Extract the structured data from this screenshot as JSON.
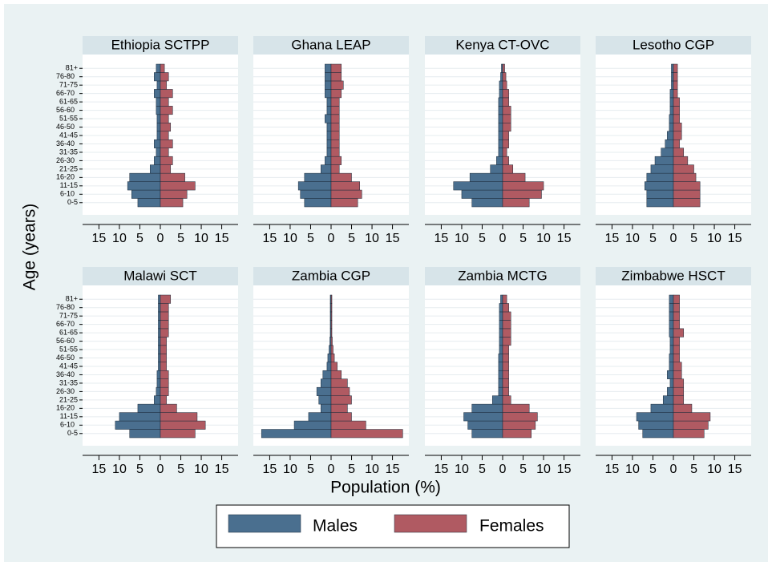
{
  "chart_data": {
    "type": "pyramid-grid",
    "x_label": "Population (%)",
    "y_label": "Age (years)",
    "categories": [
      "0-5",
      "6-10",
      "11-15",
      "16-20",
      "21-25",
      "26-30",
      "31-35",
      "36-40",
      "41-45",
      "46-50",
      "51-55",
      "56-60",
      "61-65",
      "66-70",
      "71-75",
      "76-80",
      "81+"
    ],
    "series": [
      {
        "name": "Males",
        "color": "#4a6f8f"
      },
      {
        "name": "Females",
        "color": "#b05a62"
      }
    ],
    "xlim": [
      -19,
      19
    ],
    "xticks": [
      {
        "value": -15,
        "label": "15"
      },
      {
        "value": -10,
        "label": "10"
      },
      {
        "value": -5,
        "label": "5"
      },
      0,
      5,
      10,
      15
    ],
    "panels": [
      {
        "title": "Ethiopia SCTPP",
        "series": [
          {
            "values": [
              -5.5,
              -7,
              -8,
              -7.5,
              -2.5,
              -1.5,
              -1,
              -1.5,
              -0.8,
              -0.8,
              -0.8,
              -1,
              -1,
              -1.5,
              -0.8,
              -1.5,
              -1
            ]
          },
          {
            "values": [
              5.5,
              6.5,
              8.5,
              6,
              2.5,
              3,
              2,
              3,
              2,
              2.5,
              2,
              3,
              2,
              3,
              1.5,
              2,
              1
            ]
          }
        ]
      },
      {
        "title": "Ghana LEAP",
        "series": [
          {
            "values": [
              -6.5,
              -7.5,
              -8,
              -6.5,
              -2.5,
              -1.5,
              -1,
              -1,
              -1,
              -1,
              -1.5,
              -1,
              -1,
              -1.5,
              -1.5,
              -1.5,
              -1.5
            ]
          },
          {
            "values": [
              6.5,
              7.5,
              7,
              5,
              2,
              2.5,
              2,
              2,
              2,
              2,
              2,
              2,
              2,
              2.5,
              3,
              2.5,
              2.5
            ]
          }
        ]
      },
      {
        "title": "Kenya CT-OVC",
        "series": [
          {
            "values": [
              -7.5,
              -10,
              -12,
              -8,
              -3,
              -1.5,
              -1,
              -1,
              -1,
              -1,
              -1,
              -1,
              -1,
              -0.8,
              -0.8,
              -0.5,
              -0.3
            ]
          },
          {
            "values": [
              6.5,
              9.5,
              10,
              5.5,
              2.5,
              1.5,
              1,
              1.5,
              1.5,
              2,
              2,
              2,
              1.5,
              1.5,
              1,
              0.8,
              0.5
            ]
          }
        ]
      },
      {
        "title": "Lesotho CGP",
        "series": [
          {
            "values": [
              -6.5,
              -6.5,
              -7,
              -6.5,
              -5.5,
              -4.5,
              -3,
              -2,
              -1.5,
              -1,
              -1,
              -0.8,
              -0.8,
              -0.8,
              -0.5,
              -0.5,
              -0.5
            ]
          },
          {
            "values": [
              6.5,
              6.5,
              6.5,
              5.5,
              5,
              3.5,
              2.5,
              1.5,
              2,
              2,
              1.5,
              1.5,
              1.5,
              1,
              1,
              1,
              1
            ]
          }
        ]
      },
      {
        "title": "Malawi SCT",
        "series": [
          {
            "values": [
              -7.5,
              -11,
              -10,
              -5.5,
              -1.5,
              -1,
              -0.8,
              -0.8,
              -0.5,
              -0.5,
              -0.5,
              -0.5,
              -0.5,
              -0.5,
              -0.5,
              -0.5,
              -0.5
            ]
          },
          {
            "values": [
              8.5,
              11,
              9,
              4,
              1.5,
              2,
              2,
              2,
              1.5,
              1.5,
              1.5,
              1.5,
              2,
              2,
              2,
              2,
              2.5
            ]
          }
        ]
      },
      {
        "title": "Zambia CGP",
        "series": [
          {
            "values": [
              -17,
              -9,
              -5.5,
              -2.5,
              -3,
              -3.5,
              -2.5,
              -2,
              -1,
              -0.8,
              -0.5,
              -0.3,
              -0.2,
              -0.2,
              -0.2,
              -0.2,
              -0.2
            ]
          },
          {
            "values": [
              17.5,
              8.5,
              5,
              4,
              5,
              4.5,
              4,
              2.5,
              1.5,
              0.8,
              0.5,
              0.3,
              0.2,
              0.2,
              0.2,
              0.2,
              0.2
            ]
          }
        ]
      },
      {
        "title": "Zambia MCTG",
        "series": [
          {
            "values": [
              -7.5,
              -8.5,
              -9.5,
              -7.5,
              -2.5,
              -1,
              -1,
              -1,
              -1,
              -1,
              -0.8,
              -0.8,
              -0.8,
              -0.8,
              -0.8,
              -0.8,
              -0.5
            ]
          },
          {
            "values": [
              7,
              8,
              8.5,
              6.5,
              2,
              1.5,
              1.5,
              1.5,
              1.5,
              1.5,
              1.5,
              2,
              2,
              2,
              2,
              1.5,
              1
            ]
          }
        ]
      },
      {
        "title": "Zimbabwe HSCT",
        "series": [
          {
            "values": [
              -7.5,
              -8.5,
              -9,
              -5.5,
              -2.5,
              -1.5,
              -0.8,
              -1.5,
              -1,
              -1,
              -0.8,
              -0.8,
              -1,
              -1,
              -1,
              -1,
              -1
            ]
          },
          {
            "values": [
              7.5,
              8.5,
              9,
              4.5,
              2.5,
              2.5,
              2.5,
              2,
              2,
              1.5,
              1.5,
              1.5,
              2.5,
              1.5,
              1.5,
              1.5,
              1.5
            ]
          }
        ]
      }
    ]
  }
}
